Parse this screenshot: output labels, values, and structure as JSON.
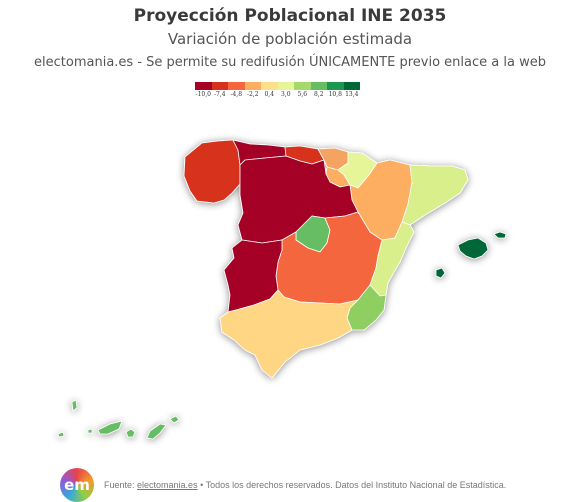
{
  "header": {
    "title": "Proyección Poblacional INE 2035",
    "subtitle": "Variación de población estimada",
    "notice": "electomania.es - Se permite su redifusión ÚNICAMENTE previo enlace a la web"
  },
  "legend": {
    "ticks": [
      "-10,0",
      "-7,4",
      "-4,8",
      "-2,2",
      "0,4",
      "3,0",
      "5,6",
      "8,2",
      "10,8",
      "13,4"
    ],
    "colors": [
      "#a50026",
      "#d7301f",
      "#f4663d",
      "#fdae61",
      "#fee08b",
      "#e6f598",
      "#a6d96a",
      "#66bd63",
      "#1a9850",
      "#006837"
    ]
  },
  "map": {
    "regions": [
      {
        "name": "Galicia",
        "color": "#d7301f"
      },
      {
        "name": "Asturias",
        "color": "#a50026"
      },
      {
        "name": "Cantabria",
        "color": "#d7301f"
      },
      {
        "name": "País Vasco",
        "color": "#f4a460"
      },
      {
        "name": "Navarra",
        "color": "#e6f598"
      },
      {
        "name": "La Rioja",
        "color": "#fdae61"
      },
      {
        "name": "Aragón",
        "color": "#fdae61"
      },
      {
        "name": "Cataluña",
        "color": "#d9ef8b"
      },
      {
        "name": "Castilla y León",
        "color": "#a50026"
      },
      {
        "name": "Madrid",
        "color": "#66bd63"
      },
      {
        "name": "Castilla-La Mancha",
        "color": "#f4663d"
      },
      {
        "name": "Extremadura",
        "color": "#a50026"
      },
      {
        "name": "Comunidad Valenciana",
        "color": "#d9ef8b"
      },
      {
        "name": "Región de Murcia",
        "color": "#8fce60"
      },
      {
        "name": "Andalucía",
        "color": "#fed684"
      },
      {
        "name": "Islas Baleares",
        "color": "#006837"
      },
      {
        "name": "Islas Canarias",
        "color": "#66bd63"
      }
    ]
  },
  "footer": {
    "logo_text": "em",
    "prefix": "Fuente: ",
    "link": "electomania.es",
    "rest": " • Todos los derechos reservados. Datos del Instituto Nacional de Estadística."
  }
}
